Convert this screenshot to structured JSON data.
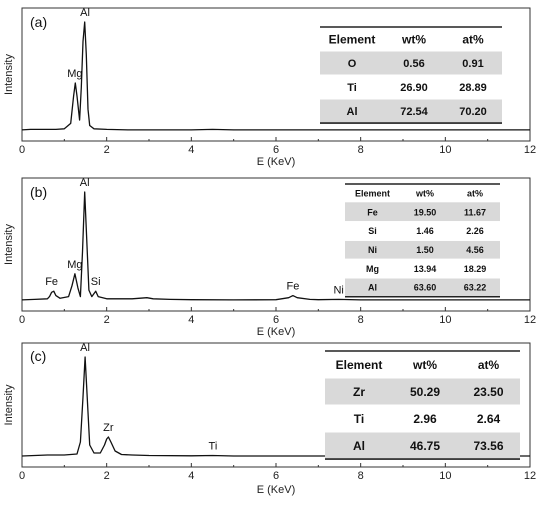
{
  "chart_data": [
    {
      "type": "line",
      "panel_label": "(a)",
      "xlabel": "E (KeV)",
      "ylabel": "Intensity",
      "xlim": [
        0,
        12
      ],
      "x_ticks": [
        0,
        2,
        4,
        6,
        8,
        10,
        12
      ],
      "grid": false,
      "y_scale_max": 100,
      "series": [
        {
          "x": [
            0.0,
            0.2,
            0.5,
            0.8,
            1.0,
            1.15,
            1.22,
            1.26,
            1.3,
            1.36,
            1.4,
            1.44,
            1.48,
            1.52,
            1.56,
            1.6,
            1.7,
            2.0,
            2.5,
            3.0,
            4.0,
            4.5,
            5.0,
            6.0,
            7.0,
            8.0,
            9.0,
            10.0,
            11.0,
            12.0
          ],
          "y": [
            1,
            1.5,
            1.5,
            1.5,
            2,
            7,
            32,
            44,
            32,
            10,
            40,
            82,
            100,
            70,
            20,
            5,
            2,
            1.5,
            1,
            1,
            1,
            1.5,
            1,
            1,
            1,
            1,
            1,
            1,
            1,
            1
          ]
        }
      ],
      "peak_labels": [
        {
          "text": "Mg",
          "x": 1.25,
          "y": 44
        },
        {
          "text": "Al",
          "x": 1.49,
          "y": 100
        }
      ],
      "table": {
        "headers": [
          "Element",
          "wt%",
          "at%"
        ],
        "rows": [
          [
            "O",
            "0.56",
            "0.91"
          ],
          [
            "Ti",
            "26.90",
            "28.89"
          ],
          [
            "Al",
            "72.54",
            "70.20"
          ]
        ]
      }
    },
    {
      "type": "line",
      "panel_label": "(b)",
      "xlabel": "E (KeV)",
      "ylabel": "Intensity",
      "xlim": [
        0,
        12
      ],
      "x_ticks": [
        0,
        2,
        4,
        6,
        8,
        10,
        12
      ],
      "grid": false,
      "y_scale_max": 100,
      "series": [
        {
          "x": [
            0.0,
            0.3,
            0.6,
            0.65,
            0.7,
            0.75,
            0.8,
            0.9,
            1.1,
            1.18,
            1.25,
            1.32,
            1.38,
            1.43,
            1.48,
            1.53,
            1.58,
            1.65,
            1.74,
            1.8,
            2.0,
            2.6,
            2.95,
            3.1,
            3.5,
            4.0,
            5.0,
            6.0,
            6.3,
            6.4,
            6.5,
            6.8,
            7.0,
            7.48,
            8.0,
            9.0,
            10.0,
            11.0,
            12.0
          ],
          "y": [
            1,
            1.5,
            2,
            4,
            8,
            9,
            5,
            2.5,
            4,
            14,
            25,
            12,
            4,
            45,
            100,
            55,
            10,
            4,
            9,
            4,
            2,
            2,
            3,
            2,
            1.5,
            1.2,
            1,
            1.2,
            3,
            5,
            3,
            1.5,
            1.2,
            1.5,
            1,
            1,
            1,
            1,
            1
          ]
        }
      ],
      "peak_labels": [
        {
          "text": "Fe",
          "x": 0.7,
          "y": 9
        },
        {
          "text": "Mg",
          "x": 1.25,
          "y": 25
        },
        {
          "text": "Al",
          "x": 1.48,
          "y": 100
        },
        {
          "text": "Si",
          "x": 1.74,
          "y": 9
        },
        {
          "text": "Fe",
          "x": 6.4,
          "y": 5
        },
        {
          "text": "Ni",
          "x": 7.48,
          "y": 1.5
        }
      ],
      "table": {
        "headers": [
          "Element",
          "wt%",
          "at%"
        ],
        "rows": [
          [
            "Fe",
            "19.50",
            "11.67"
          ],
          [
            "Si",
            "1.46",
            "2.26"
          ],
          [
            "Ni",
            "1.50",
            "4.56"
          ],
          [
            "Mg",
            "13.94",
            "18.29"
          ],
          [
            "Al",
            "63.60",
            "63.22"
          ]
        ]
      }
    },
    {
      "type": "line",
      "panel_label": "(c)",
      "xlabel": "E (KeV)",
      "ylabel": "Intensity",
      "xlim": [
        0,
        12
      ],
      "x_ticks": [
        0,
        2,
        4,
        6,
        8,
        10,
        12
      ],
      "grid": false,
      "y_scale_max": 100,
      "series": [
        {
          "x": [
            0.0,
            0.3,
            0.6,
            1.0,
            1.3,
            1.38,
            1.44,
            1.49,
            1.54,
            1.6,
            1.7,
            1.85,
            1.95,
            2.0,
            2.04,
            2.1,
            2.2,
            2.35,
            2.6,
            3.0,
            4.0,
            4.5,
            5.0,
            6.0,
            7.0,
            8.0,
            9.0,
            10.0,
            11.0,
            12.0
          ],
          "y": [
            1,
            1.5,
            2,
            2,
            3,
            15,
            60,
            100,
            60,
            12,
            4,
            4,
            12,
            18,
            20,
            15,
            6,
            2.5,
            2,
            1.5,
            1.2,
            1.5,
            1,
            1,
            1,
            1,
            1,
            1,
            1,
            1
          ]
        }
      ],
      "peak_labels": [
        {
          "text": "Al",
          "x": 1.49,
          "y": 100
        },
        {
          "text": "Zr",
          "x": 2.04,
          "y": 20
        },
        {
          "text": "Ti",
          "x": 4.51,
          "y": 1.5
        }
      ],
      "table": {
        "headers": [
          "Element",
          "wt%",
          "at%"
        ],
        "rows": [
          [
            "Zr",
            "50.29",
            "23.50"
          ],
          [
            "Ti",
            "2.96",
            "2.64"
          ],
          [
            "Al",
            "46.75",
            "73.56"
          ]
        ]
      }
    }
  ]
}
